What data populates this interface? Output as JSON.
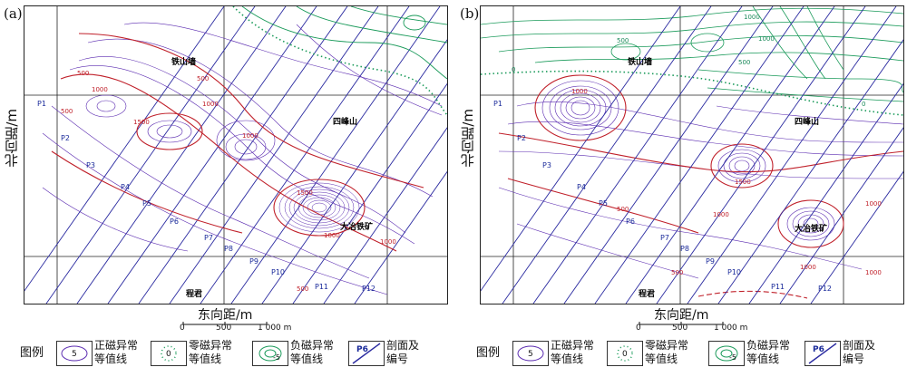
{
  "panels": [
    {
      "label": "(a)"
    },
    {
      "label": "(b)"
    }
  ],
  "axes": {
    "ylabel": "北向距/m",
    "xlabel": "东向距/m"
  },
  "scale": {
    "ticks": [
      "0",
      "500",
      "1 000 m"
    ]
  },
  "places": {
    "tieshan": "铁山墙",
    "sifeng": "四峰山",
    "daye": "大冶铁矿",
    "chengjun": "程君"
  },
  "profiles": [
    "P1",
    "P2",
    "P3",
    "P4",
    "P5",
    "P6",
    "P7",
    "P8",
    "P9",
    "P10",
    "P11",
    "P12"
  ],
  "contour_values_a": [
    "500",
    "1000",
    "1500",
    "1000",
    "500",
    "1000",
    "1500",
    "1000",
    "500",
    "1000",
    "500"
  ],
  "contour_values_b": [
    "1000",
    "500",
    "1000",
    "500",
    "0",
    "0",
    "1000",
    "1500",
    "1000",
    "500",
    "1000",
    "1000",
    "500",
    "1000"
  ],
  "legend": {
    "title": "图例",
    "positive": "正磁异常\n等值线",
    "positive_sym": "5",
    "zero": "零磁异常\n等值线",
    "zero_sym": "0",
    "negative": "负磁异常\n等值线",
    "negative_sym": "-5",
    "profile": "剖面及\n编号",
    "profile_sym": "P6"
  }
}
